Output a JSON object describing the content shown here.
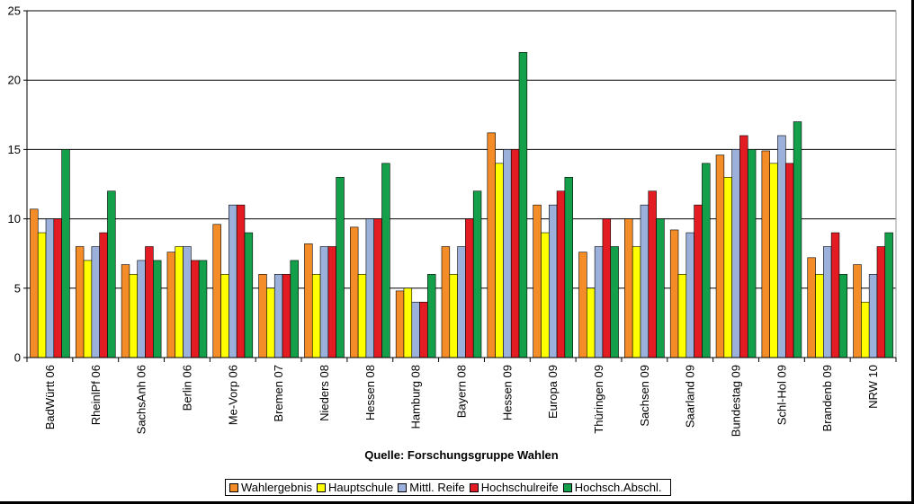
{
  "chart_data": {
    "type": "bar",
    "categories": [
      "BadWürtt 06",
      "RheinlPf 06",
      "SachsAnh 06",
      "Berlin 06",
      "Me-Vorp 06",
      "Bremen 07",
      "Nieders 08",
      "Hessen 08",
      "Hamburg 08",
      "Bayern 08",
      "Hessen 09",
      "Europa 09",
      "Thüringen 09",
      "Sachsen 09",
      "Saarland 09",
      "Bundestag 09",
      "Schl-Hol 09",
      "Brandenb 09",
      "NRW 10"
    ],
    "series": [
      {
        "name": "Wahlergebnis",
        "color": "#F48C28",
        "values": [
          10.7,
          8.0,
          6.7,
          7.6,
          9.6,
          6.0,
          8.2,
          9.4,
          4.8,
          8.0,
          16.2,
          11.0,
          7.6,
          10.0,
          9.2,
          14.6,
          14.9,
          7.2,
          6.7
        ]
      },
      {
        "name": "Hauptschule",
        "color": "#FFFF00",
        "values": [
          9,
          7,
          6,
          8,
          6,
          5,
          6,
          6,
          5,
          6,
          14,
          9,
          5,
          8,
          6,
          13,
          14,
          6,
          4
        ]
      },
      {
        "name": "Mittl. Reife",
        "color": "#9BB1DC",
        "values": [
          10,
          8,
          7,
          8,
          11,
          6,
          8,
          10,
          4,
          8,
          15,
          11,
          8,
          11,
          9,
          15,
          16,
          8,
          6
        ]
      },
      {
        "name": "Hochschulreife",
        "color": "#E31B23",
        "values": [
          10,
          9,
          8,
          7,
          11,
          6,
          8,
          10,
          4,
          10,
          15,
          12,
          10,
          12,
          11,
          16,
          14,
          9,
          8
        ]
      },
      {
        "name": "Hochsch.Abschl.",
        "color": "#14A04A",
        "values": [
          15,
          12,
          7,
          7,
          9,
          7,
          13,
          14,
          6,
          12,
          22,
          13,
          8,
          10,
          14,
          15,
          17,
          6,
          9
        ]
      }
    ],
    "xlabel": "Quelle: Forschungsgruppe Wahlen",
    "ylabel": "",
    "ylim": [
      0,
      25
    ],
    "yticks": [
      0,
      5,
      10,
      15,
      20,
      25
    ],
    "grid": "horizontal",
    "legend_position": "bottom"
  }
}
